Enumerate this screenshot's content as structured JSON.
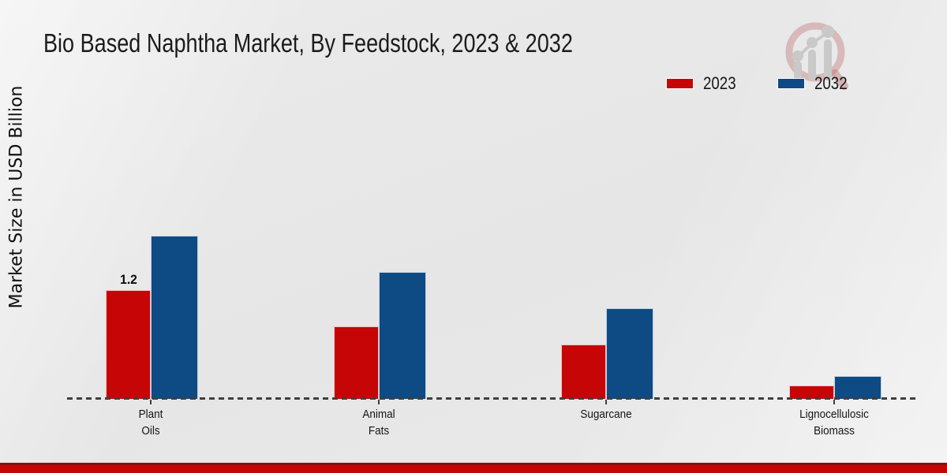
{
  "title": "Bio Based Naphtha Market, By Feedstock, 2023 & 2032",
  "y_axis_label": "Market Size in USD Billion",
  "legend": {
    "position": "top-right",
    "items": [
      {
        "label": "2023",
        "color": "#c60606"
      },
      {
        "label": "2032",
        "color": "#0e4a84"
      }
    ]
  },
  "watermark": {
    "name": "magnifier-growth-chart-logo"
  },
  "colors": {
    "series_2023": "#c60606",
    "series_2032": "#0e4a84",
    "footer_band": "#c50404",
    "footer_band_edge": "#900d0d",
    "background": "#e7e7e7",
    "axis_dash": "#3f3f3f"
  },
  "chart_data": {
    "type": "bar",
    "title": "Bio Based Naphtha Market, By Feedstock, 2023 & 2032",
    "ylabel": "Market Size in USD Billion",
    "xlabel": "",
    "categories": [
      "Plant Oils",
      "Animal Fats",
      "Sugarcane",
      "Lignocellulosic Biomass"
    ],
    "category_lines": [
      [
        "Plant",
        "Oils"
      ],
      [
        "Animal",
        "Fats"
      ],
      [
        "Sugarcane"
      ],
      [
        "Lignocellulosic",
        "Biomass"
      ]
    ],
    "series": [
      {
        "name": "2023",
        "color": "#c60606",
        "values": [
          1.2,
          0.8,
          0.6,
          0.15
        ]
      },
      {
        "name": "2032",
        "color": "#0e4a84",
        "values": [
          1.8,
          1.4,
          1.0,
          0.25
        ]
      }
    ],
    "annotations": [
      {
        "series": "2023",
        "category": "Plant Oils",
        "text": "1.2"
      }
    ],
    "ylim": [
      0,
      2.0
    ],
    "grid": false,
    "y_axis_ticks_visible": false,
    "baseline_style": "dashed",
    "legend_position": "top-right"
  }
}
